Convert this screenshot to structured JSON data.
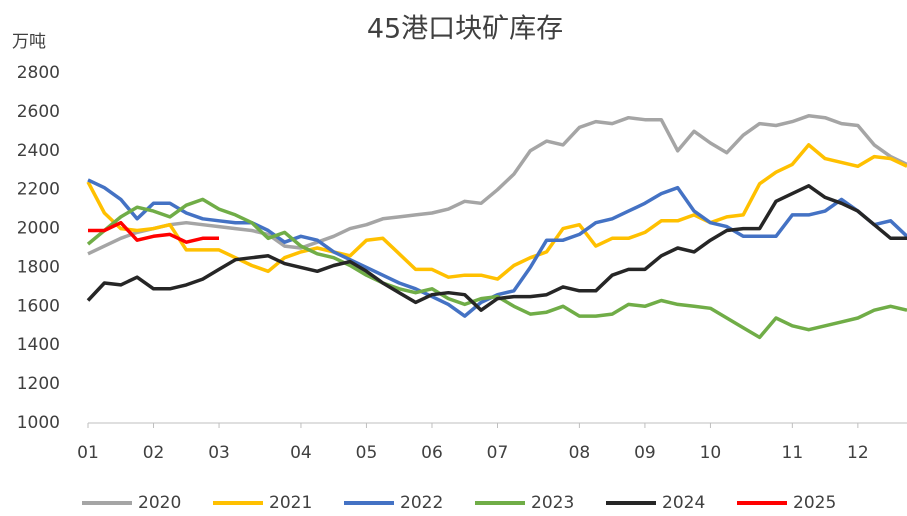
{
  "chart_data": {
    "type": "line",
    "title": "45港口块矿库存",
    "y_label": "万吨",
    "categories": [
      "01",
      null,
      null,
      null,
      "02",
      null,
      null,
      null,
      "03",
      null,
      null,
      null,
      null,
      "04",
      null,
      null,
      null,
      "05",
      null,
      null,
      null,
      "06",
      null,
      null,
      null,
      "07",
      null,
      null,
      null,
      null,
      "08",
      null,
      null,
      null,
      "09",
      null,
      null,
      null,
      "10",
      null,
      null,
      null,
      null,
      "11",
      null,
      null,
      null,
      "12",
      null,
      null,
      null
    ],
    "ylim": [
      1000,
      2800
    ],
    "yticks": [
      1000,
      1200,
      1400,
      1600,
      1800,
      2000,
      2200,
      2400,
      2600,
      2800
    ],
    "grid": false,
    "legend": "bottom",
    "series": [
      {
        "name": "2020",
        "color": "#a5a5a5",
        "values": [
          1870,
          1910,
          1950,
          1980,
          2000,
          2020,
          2030,
          2020,
          2010,
          2000,
          1990,
          1970,
          1910,
          1900,
          1930,
          1960,
          2000,
          2020,
          2050,
          2060,
          2070,
          2080,
          2100,
          2140,
          2130,
          2200,
          2280,
          2400,
          2450,
          2430,
          2520,
          2550,
          2540,
          2570,
          2560,
          2560,
          2400,
          2500,
          2440,
          2390,
          2480,
          2540,
          2530,
          2550,
          2580,
          2570,
          2540,
          2530,
          2430,
          2370,
          2330
        ]
      },
      {
        "name": "2021",
        "color": "#ffc000",
        "values": [
          2240,
          2080,
          2000,
          1990,
          2000,
          2020,
          1890,
          1890,
          1890,
          1850,
          1810,
          1780,
          1850,
          1880,
          1900,
          1880,
          1860,
          1940,
          1950,
          1870,
          1790,
          1790,
          1750,
          1760,
          1760,
          1740,
          1810,
          1850,
          1880,
          2000,
          2020,
          1910,
          1950,
          1950,
          1980,
          2040,
          2040,
          2070,
          2030,
          2060,
          2070,
          2230,
          2290,
          2330,
          2430,
          2360,
          2340,
          2320,
          2370,
          2360,
          2320
        ]
      },
      {
        "name": "2022",
        "color": "#4472c4",
        "values": [
          2250,
          2210,
          2150,
          2050,
          2130,
          2130,
          2080,
          2050,
          2040,
          2030,
          2030,
          1990,
          1930,
          1960,
          1940,
          1880,
          1840,
          1800,
          1760,
          1720,
          1690,
          1650,
          1610,
          1550,
          1620,
          1660,
          1680,
          1800,
          1940,
          1940,
          1970,
          2030,
          2050,
          2090,
          2130,
          2180,
          2210,
          2090,
          2030,
          2010,
          1960,
          1960,
          1960,
          2070,
          2070,
          2090,
          2150,
          2090,
          2020,
          2040,
          1960
        ]
      },
      {
        "name": "2023",
        "color": "#70ad47",
        "values": [
          1920,
          1990,
          2060,
          2110,
          2090,
          2060,
          2120,
          2150,
          2100,
          2070,
          2030,
          1950,
          1980,
          1910,
          1870,
          1850,
          1810,
          1760,
          1720,
          1690,
          1670,
          1690,
          1640,
          1610,
          1640,
          1650,
          1600,
          1560,
          1570,
          1600,
          1550,
          1550,
          1560,
          1610,
          1600,
          1630,
          1610,
          1600,
          1590,
          1540,
          1490,
          1440,
          1540,
          1500,
          1480,
          1500,
          1520,
          1540,
          1580,
          1600,
          1580
        ]
      },
      {
        "name": "2024",
        "color": "#262626",
        "values": [
          1630,
          1720,
          1710,
          1750,
          1690,
          1690,
          1710,
          1740,
          1790,
          1840,
          1850,
          1860,
          1820,
          1800,
          1780,
          1810,
          1830,
          1780,
          1720,
          1670,
          1620,
          1660,
          1670,
          1660,
          1580,
          1640,
          1650,
          1650,
          1660,
          1700,
          1680,
          1680,
          1760,
          1790,
          1790,
          1860,
          1900,
          1880,
          1940,
          1990,
          2000,
          2000,
          2140,
          2180,
          2220,
          2160,
          2130,
          2090,
          2020,
          1950,
          1950
        ]
      },
      {
        "name": "2025",
        "color": "#ff0000",
        "values": [
          1990,
          1990,
          2030,
          1940,
          1960,
          1970,
          1930,
          1950,
          1950,
          null,
          null,
          null,
          null,
          null,
          null,
          null,
          null,
          null,
          null,
          null,
          null,
          null,
          null,
          null,
          null,
          null,
          null,
          null,
          null,
          null,
          null,
          null,
          null,
          null,
          null,
          null,
          null,
          null,
          null,
          null,
          null,
          null,
          null,
          null,
          null,
          null,
          null,
          null,
          null,
          null,
          null
        ]
      }
    ]
  }
}
